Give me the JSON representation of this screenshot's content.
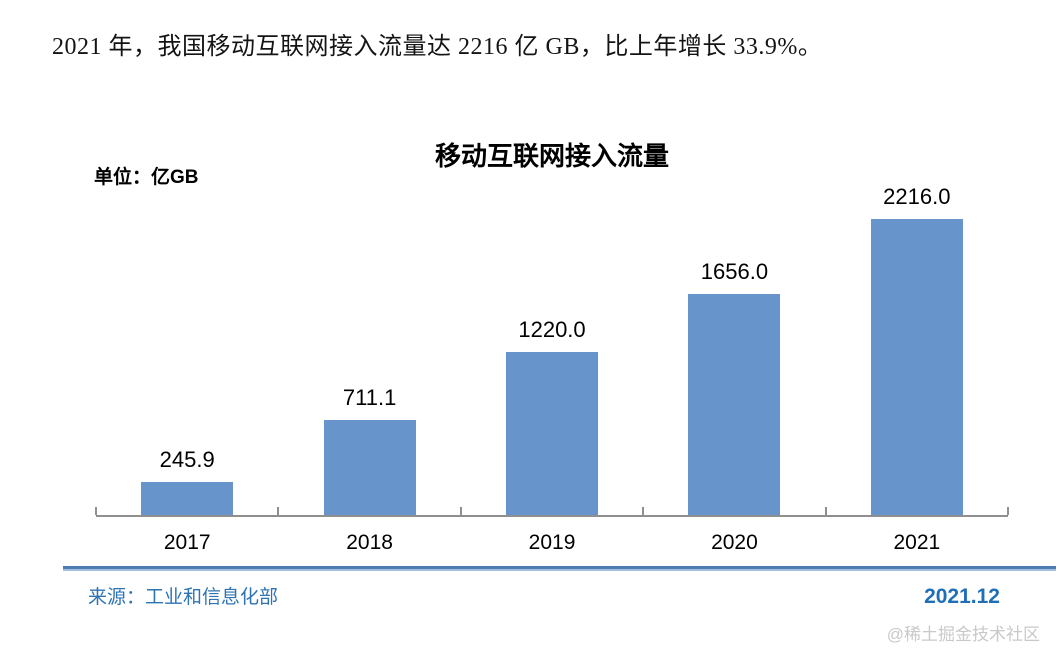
{
  "page": {
    "headline": "2021 年，我国移动互联网接入流量达 2216 亿 GB，比上年增长 33.9%。"
  },
  "chart": {
    "title": "移动互联网接入流量",
    "unit_label": "单位：亿GB"
  },
  "chart_data": {
    "type": "bar",
    "title": "移动互联网接入流量",
    "unit": "亿GB",
    "categories": [
      "2017",
      "2018",
      "2019",
      "2020",
      "2021"
    ],
    "values": [
      245.9,
      711.1,
      1220.0,
      1656.0,
      2216.0
    ],
    "value_labels": [
      "245.9",
      "711.1",
      "1220.0",
      "1656.0",
      "2216.0"
    ],
    "ylim": [
      0,
      2216
    ],
    "bar_color": "#6794cb",
    "axis_color": "#8f8f8f",
    "grid": false,
    "legend": false,
    "data_labels": "above bars"
  },
  "footer": {
    "source": "来源：工业和信息化部",
    "date": "2021.12",
    "watermark": "@稀土掘金技术社区"
  }
}
